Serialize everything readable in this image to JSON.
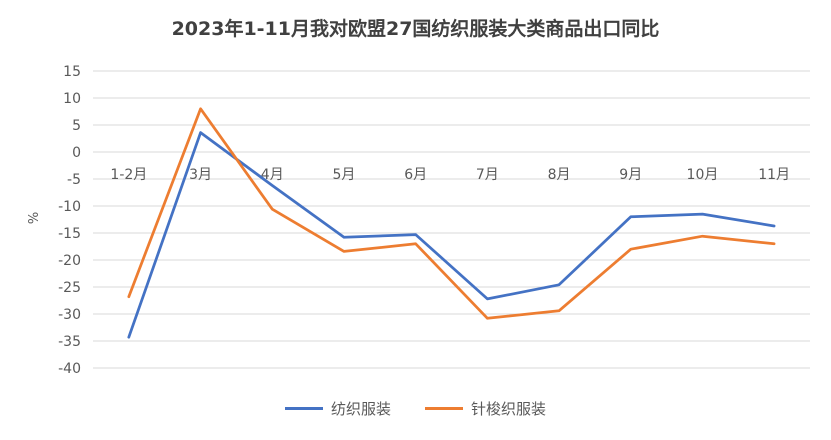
{
  "chart_data": {
    "type": "line",
    "title": "2023年1-11月我对欧盟27国纺织服装大类商品出口同比",
    "ylabel": "%",
    "xlabel": "",
    "categories": [
      "1-2月",
      "3月",
      "4月",
      "5月",
      "6月",
      "7月",
      "8月",
      "9月",
      "10月",
      "11月"
    ],
    "ylim": [
      -40,
      15
    ],
    "yticks": [
      15,
      10,
      5,
      0,
      -5,
      -10,
      -15,
      -20,
      -25,
      -30,
      -35,
      -40
    ],
    "grid": true,
    "legend_position": "bottom",
    "series": [
      {
        "name": "纺织服装",
        "color": "#4472C4",
        "values": [
          -34.3,
          3.6,
          -6.2,
          -15.8,
          -15.3,
          -27.2,
          -24.6,
          -12.0,
          -11.5,
          -13.7
        ]
      },
      {
        "name": "针梭织服装",
        "color": "#ED7D31",
        "values": [
          -26.8,
          8.0,
          -10.6,
          -18.4,
          -17.0,
          -30.8,
          -29.4,
          -18.0,
          -15.6,
          -17.0
        ]
      }
    ]
  }
}
